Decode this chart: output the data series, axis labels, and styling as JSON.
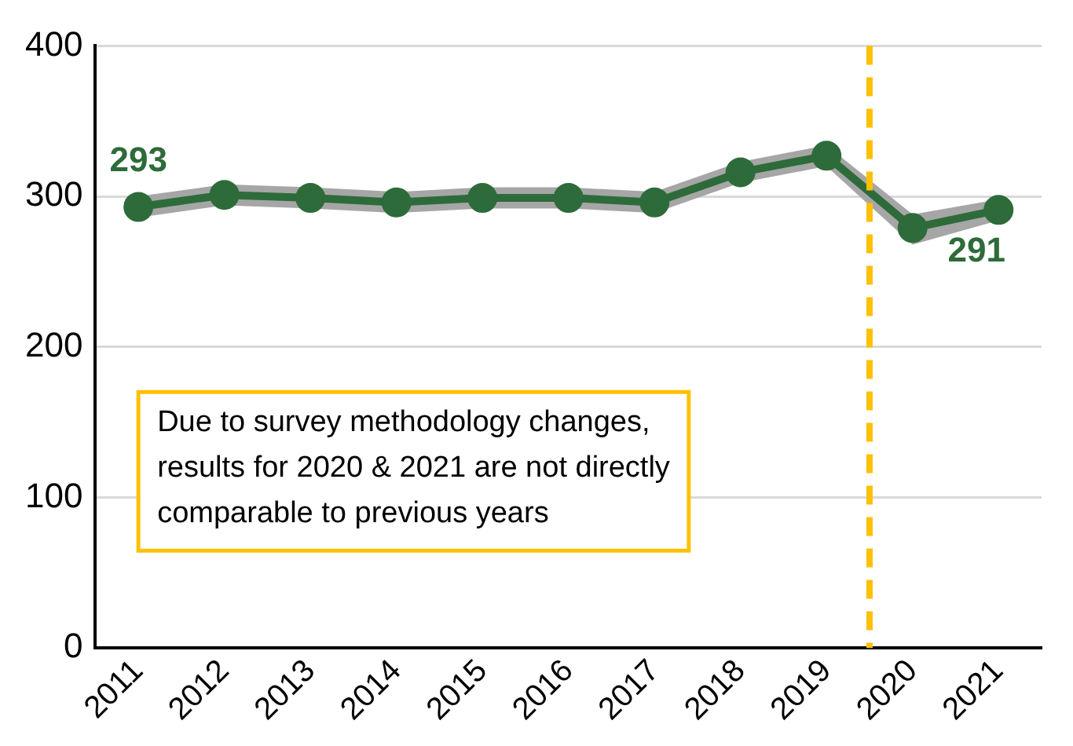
{
  "chart_data": {
    "type": "line",
    "x": [
      2011,
      2012,
      2013,
      2014,
      2015,
      2016,
      2017,
      2018,
      2019,
      2020,
      2021
    ],
    "series": [
      {
        "color": "#2e6b3a",
        "values": [
          293,
          301,
          299,
          296,
          299,
          299,
          296,
          316,
          327,
          279,
          291
        ],
        "lower": [
          286,
          294,
          292,
          289,
          292,
          292,
          289,
          309,
          320,
          268,
          284
        ],
        "upper": [
          300,
          308,
          306,
          303,
          306,
          306,
          303,
          323,
          334,
          288,
          298
        ],
        "value_labels": [
          "293",
          null,
          null,
          null,
          null,
          null,
          null,
          null,
          null,
          null,
          "291"
        ]
      }
    ],
    "xlim": [
      2010.5,
      2021.5
    ],
    "xticks": [
      2011,
      2012,
      2013,
      2014,
      2015,
      2016,
      2017,
      2018,
      2019,
      2020,
      2021
    ],
    "ylim": [
      0,
      400
    ],
    "yticks": [
      0,
      100,
      200,
      300,
      400
    ],
    "grid": "y",
    "marker": "circle",
    "line_style": "solid",
    "ref_lines": [
      {
        "axis": "x",
        "value": 2019.5,
        "color": "#ffc000",
        "line_style": "dashed"
      }
    ],
    "annotations": [
      "Due to survey methodology changes,\nresults for 2020 & 2021 are not directly\ncomparable to previous years"
    ]
  }
}
